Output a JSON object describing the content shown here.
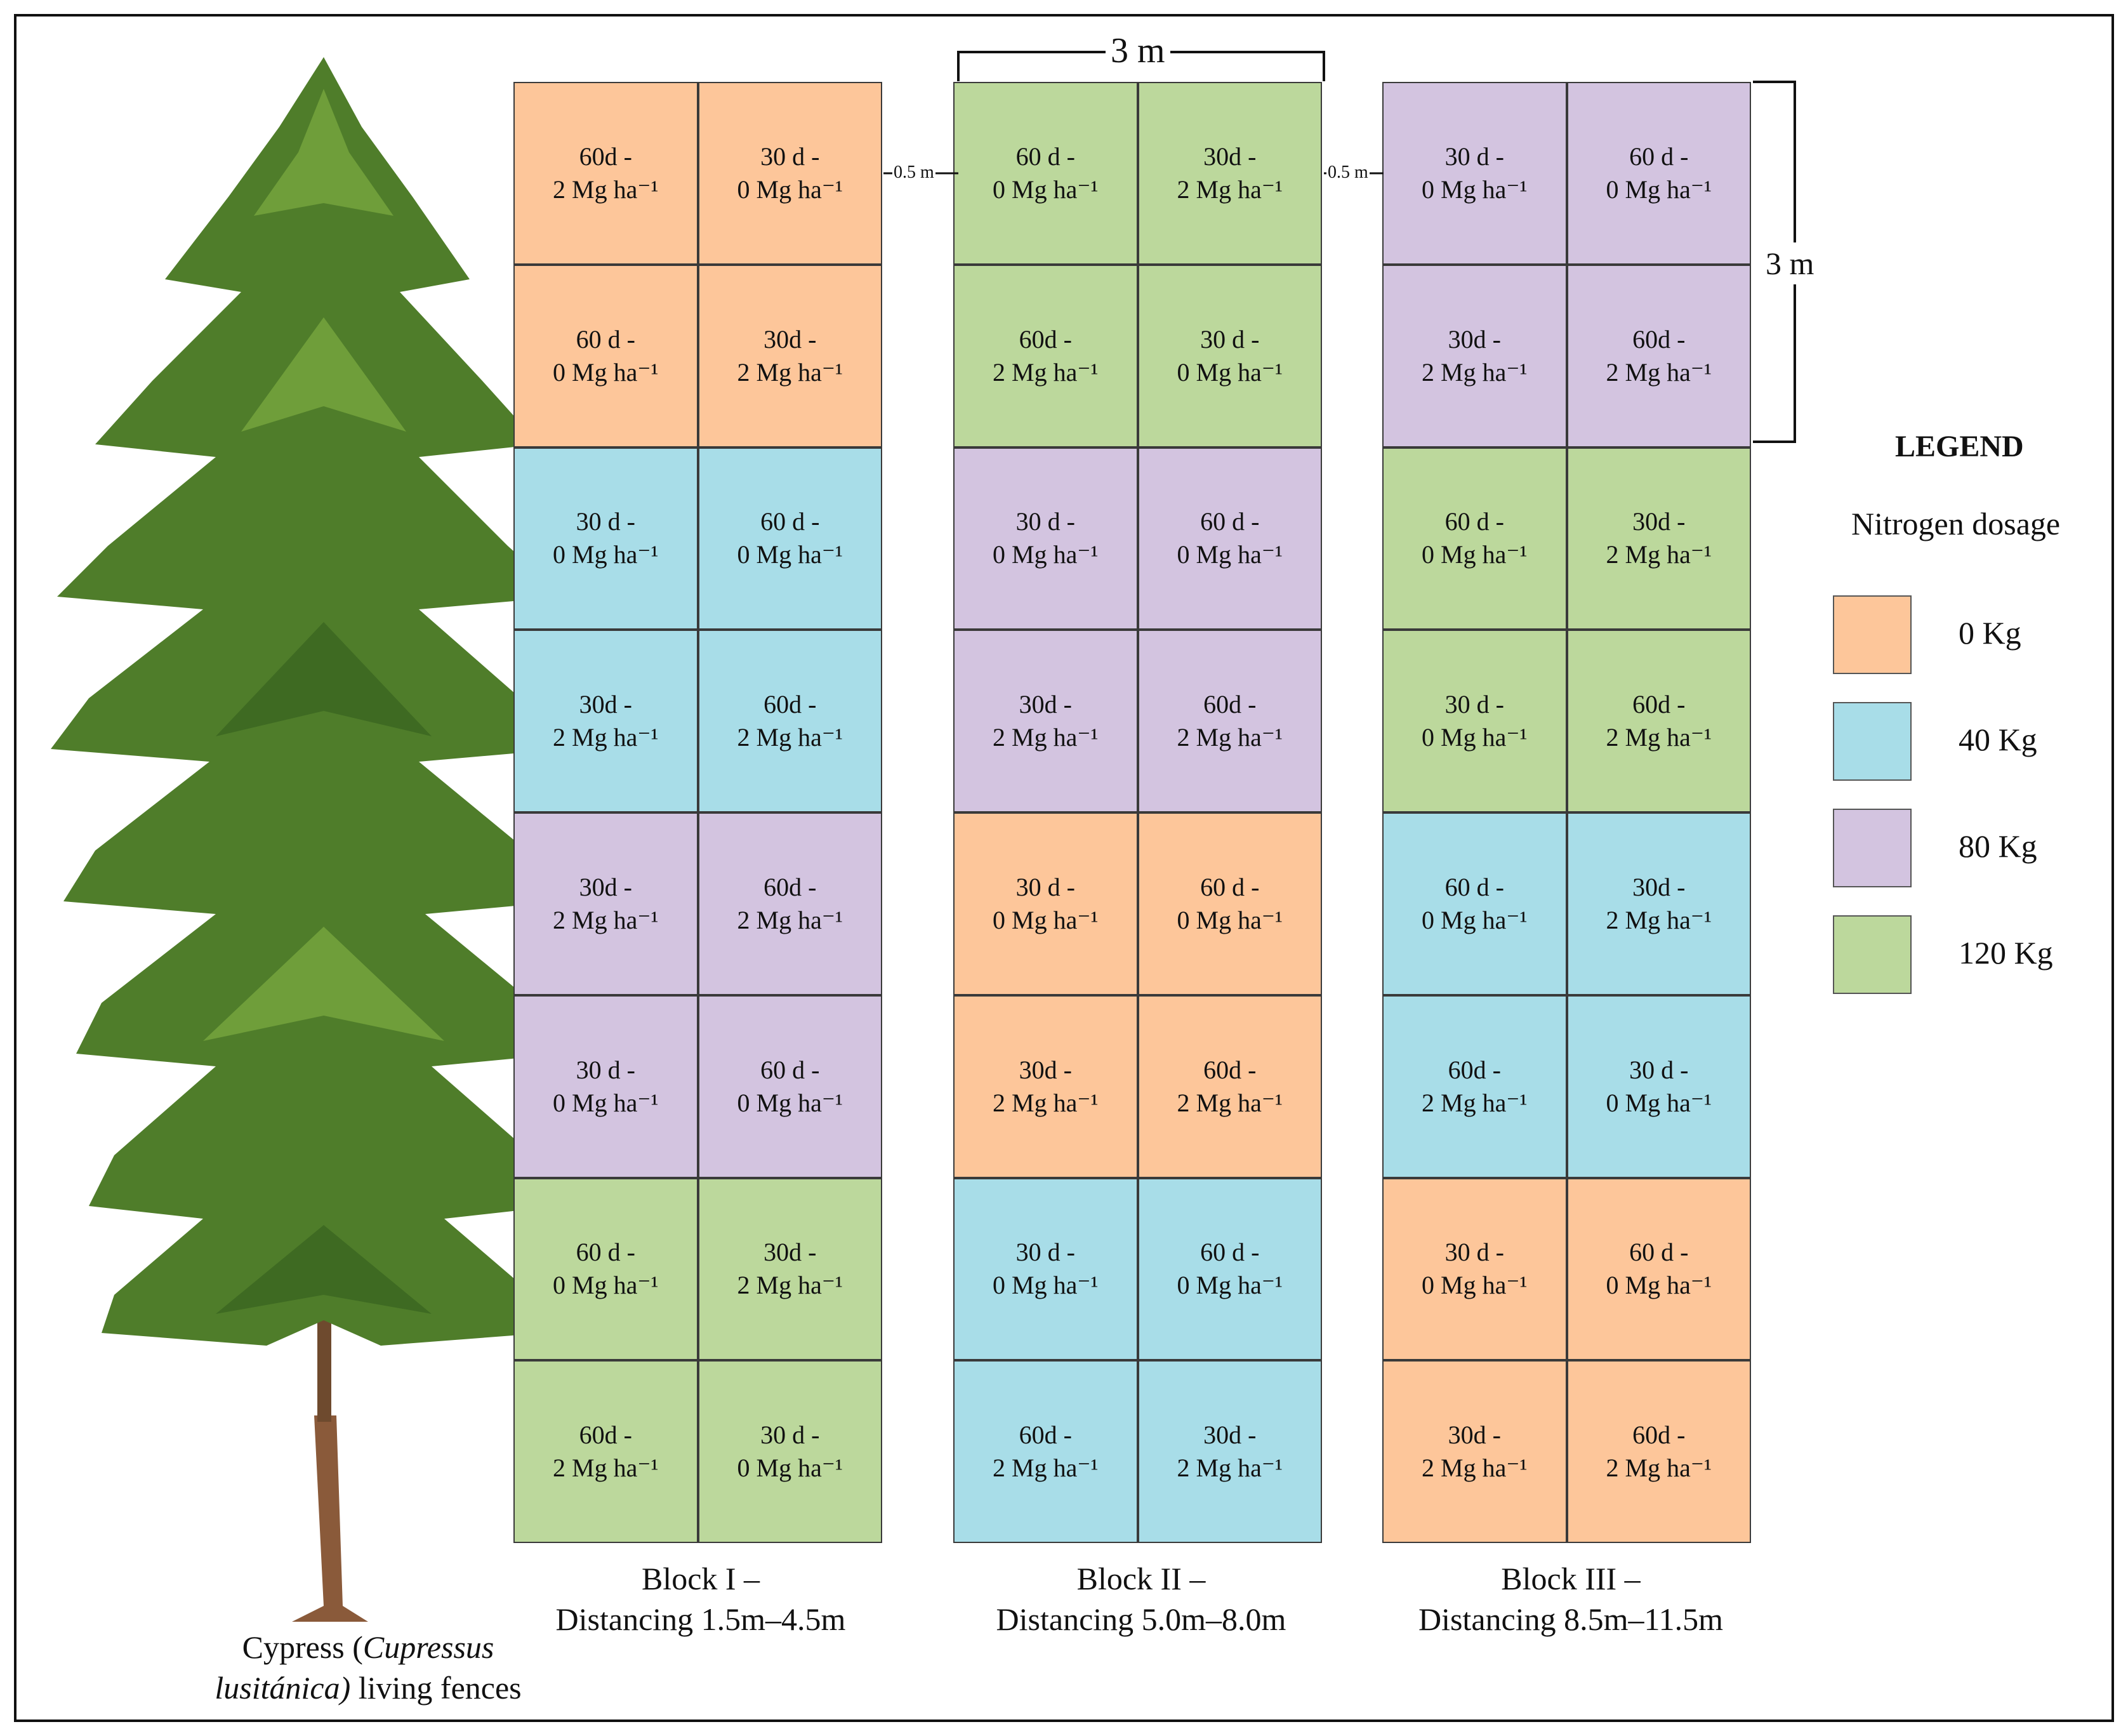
{
  "blocks": [
    {
      "label_line1": "Block I –",
      "label_line2": "Distancing 1.5m–4.5m",
      "cells": [
        {
          "l1": "60d -",
          "l2": "2 Mg ha⁻¹",
          "color": "#fdc69a"
        },
        {
          "l1": "30 d -",
          "l2": "0 Mg ha⁻¹",
          "color": "#fdc69a"
        },
        {
          "l1": "60 d -",
          "l2": "0 Mg ha⁻¹",
          "color": "#fdc69a"
        },
        {
          "l1": "30d -",
          "l2": "2 Mg ha⁻¹",
          "color": "#fdc69a"
        },
        {
          "l1": "30 d -",
          "l2": "0 Mg ha⁻¹",
          "color": "#a8dde8"
        },
        {
          "l1": "60 d -",
          "l2": "0 Mg ha⁻¹",
          "color": "#a8dde8"
        },
        {
          "l1": "30d -",
          "l2": "2 Mg ha⁻¹",
          "color": "#a8dde8"
        },
        {
          "l1": "60d -",
          "l2": "2 Mg ha⁻¹",
          "color": "#a8dde8"
        },
        {
          "l1": "30d -",
          "l2": "2 Mg ha⁻¹",
          "color": "#d3c4e0"
        },
        {
          "l1": "60d -",
          "l2": "2 Mg ha⁻¹",
          "color": "#d3c4e0"
        },
        {
          "l1": "30 d -",
          "l2": "0 Mg ha⁻¹",
          "color": "#d3c4e0"
        },
        {
          "l1": "60 d -",
          "l2": "0 Mg ha⁻¹",
          "color": "#d3c4e0"
        },
        {
          "l1": "60 d -",
          "l2": "0 Mg ha⁻¹",
          "color": "#bcd89c"
        },
        {
          "l1": "30d -",
          "l2": "2 Mg ha⁻¹",
          "color": "#bcd89c"
        },
        {
          "l1": "60d -",
          "l2": "2 Mg ha⁻¹",
          "color": "#bcd89c"
        },
        {
          "l1": "30 d -",
          "l2": "0 Mg ha⁻¹",
          "color": "#bcd89c"
        }
      ]
    },
    {
      "label_line1": "Block II –",
      "label_line2": "Distancing 5.0m–8.0m",
      "cells": [
        {
          "l1": "60 d -",
          "l2": "0 Mg ha⁻¹",
          "color": "#bcd89c"
        },
        {
          "l1": "30d -",
          "l2": "2 Mg ha⁻¹",
          "color": "#bcd89c"
        },
        {
          "l1": "60d -",
          "l2": "2 Mg ha⁻¹",
          "color": "#bcd89c"
        },
        {
          "l1": "30 d -",
          "l2": "0 Mg ha⁻¹",
          "color": "#bcd89c"
        },
        {
          "l1": "30 d -",
          "l2": "0 Mg ha⁻¹",
          "color": "#d3c4e0"
        },
        {
          "l1": "60 d -",
          "l2": "0 Mg ha⁻¹",
          "color": "#d3c4e0"
        },
        {
          "l1": "30d -",
          "l2": "2 Mg ha⁻¹",
          "color": "#d3c4e0"
        },
        {
          "l1": "60d -",
          "l2": "2 Mg ha⁻¹",
          "color": "#d3c4e0"
        },
        {
          "l1": "30 d -",
          "l2": "0 Mg ha⁻¹",
          "color": "#fdc69a"
        },
        {
          "l1": "60 d -",
          "l2": "0 Mg ha⁻¹",
          "color": "#fdc69a"
        },
        {
          "l1": "30d -",
          "l2": "2 Mg ha⁻¹",
          "color": "#fdc69a"
        },
        {
          "l1": "60d -",
          "l2": "2 Mg ha⁻¹",
          "color": "#fdc69a"
        },
        {
          "l1": "30 d -",
          "l2": "0 Mg ha⁻¹",
          "color": "#a8dde8"
        },
        {
          "l1": "60 d -",
          "l2": "0 Mg ha⁻¹",
          "color": "#a8dde8"
        },
        {
          "l1": "60d -",
          "l2": "2 Mg ha⁻¹",
          "color": "#a8dde8"
        },
        {
          "l1": "30d -",
          "l2": "2 Mg ha⁻¹",
          "color": "#a8dde8"
        }
      ]
    },
    {
      "label_line1": "Block III –",
      "label_line2": "Distancing 8.5m–11.5m",
      "cells": [
        {
          "l1": "30 d -",
          "l2": "0 Mg ha⁻¹",
          "color": "#d3c4e0"
        },
        {
          "l1": "60 d -",
          "l2": "0 Mg ha⁻¹",
          "color": "#d3c4e0"
        },
        {
          "l1": "30d -",
          "l2": "2 Mg ha⁻¹",
          "color": "#d3c4e0"
        },
        {
          "l1": "60d -",
          "l2": "2 Mg ha⁻¹",
          "color": "#d3c4e0"
        },
        {
          "l1": "60 d -",
          "l2": "0 Mg ha⁻¹",
          "color": "#bcd89c"
        },
        {
          "l1": "30d -",
          "l2": "2 Mg ha⁻¹",
          "color": "#bcd89c"
        },
        {
          "l1": "30 d -",
          "l2": "0 Mg ha⁻¹",
          "color": "#bcd89c"
        },
        {
          "l1": "60d -",
          "l2": "2 Mg ha⁻¹",
          "color": "#bcd89c"
        },
        {
          "l1": "60 d -",
          "l2": "0 Mg ha⁻¹",
          "color": "#a8dde8"
        },
        {
          "l1": "30d -",
          "l2": "2 Mg ha⁻¹",
          "color": "#a8dde8"
        },
        {
          "l1": "60d -",
          "l2": "2 Mg ha⁻¹",
          "color": "#a8dde8"
        },
        {
          "l1": "30 d -",
          "l2": "0 Mg ha⁻¹",
          "color": "#a8dde8"
        },
        {
          "l1": "30 d -",
          "l2": "0 Mg ha⁻¹",
          "color": "#fdc69a"
        },
        {
          "l1": "60 d -",
          "l2": "0 Mg ha⁻¹",
          "color": "#fdc69a"
        },
        {
          "l1": "30d -",
          "l2": "2 Mg ha⁻¹",
          "color": "#fdc69a"
        },
        {
          "l1": "60d -",
          "l2": "2 Mg ha⁻¹",
          "color": "#fdc69a"
        }
      ]
    }
  ],
  "dimensions": {
    "width_label": "3 m",
    "height_label": "3 m",
    "gap_label_1": "0.5 m",
    "gap_label_2": "0.5 m"
  },
  "legend": {
    "title": "LEGEND",
    "subtitle": "Nitrogen dosage",
    "items": [
      {
        "label": "0 Kg",
        "color": "#fdc69a"
      },
      {
        "label": "40 Kg",
        "color": "#a8dde8"
      },
      {
        "label": "80 Kg",
        "color": "#d3c4e0"
      },
      {
        "label": "120 Kg",
        "color": "#bcd89c"
      }
    ]
  },
  "caption": {
    "part1": "Cypress (",
    "italic": "Cupressus lusitánica)",
    "part2": " living fences"
  },
  "colors": {
    "tree_foliage": "#4f7d2a",
    "tree_trunk": "#8a5a3a"
  }
}
